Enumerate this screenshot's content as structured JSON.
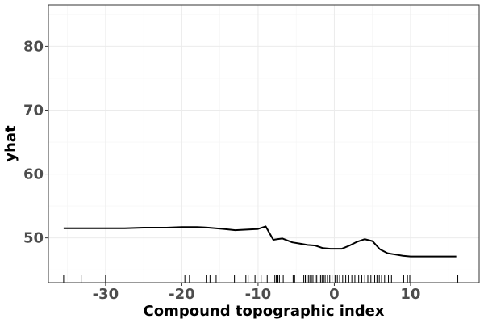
{
  "chart_data": {
    "type": "line",
    "title": "",
    "xlabel": "Compound topographic index",
    "ylabel": "yhat",
    "xlim": [
      -37.5,
      19
    ],
    "ylim": [
      43,
      86.5
    ],
    "x_ticks": [
      -30,
      -20,
      -10,
      0,
      10
    ],
    "y_ticks": [
      50,
      60,
      70,
      80
    ],
    "grid": true,
    "legend": "none",
    "series": [
      {
        "x": [
          -35.5,
          -33,
          -30,
          -27.5,
          -25,
          -22,
          -20,
          -18,
          -16.5,
          -14.5,
          -13,
          -11.5,
          -10,
          -9,
          -8,
          -7.5,
          -6.8,
          -5.5,
          -4.5,
          -3.5,
          -2.5,
          -1.5,
          -0.5,
          1,
          2,
          3,
          4,
          5,
          6,
          7,
          8,
          9,
          10,
          12,
          14,
          16
        ],
        "values": [
          51.5,
          51.5,
          51.5,
          51.5,
          51.6,
          51.6,
          51.7,
          51.7,
          51.6,
          51.4,
          51.2,
          51.3,
          51.4,
          51.8,
          49.7,
          49.8,
          49.9,
          49.3,
          49.1,
          48.9,
          48.8,
          48.4,
          48.3,
          48.3,
          48.8,
          49.4,
          49.8,
          49.5,
          48.2,
          47.6,
          47.4,
          47.2,
          47.1,
          47.1,
          47.1,
          47.1
        ]
      }
    ],
    "rug": [
      -35.5,
      -33.2,
      -30,
      -19.6,
      -19,
      -16.8,
      -16.3,
      -15.5,
      -13.1,
      -11.6,
      -11.3,
      -10.4,
      -9.6,
      -8.8,
      -7.8,
      -7.6,
      -7.4,
      -7.2,
      -6.7,
      -5.4,
      -5.2,
      -4.0,
      -3.8,
      -3.6,
      -3.4,
      -3.2,
      -3.0,
      -2.8,
      -2.5,
      -2.3,
      -2.0,
      -1.8,
      -1.6,
      -1.4,
      -1.2,
      -0.9,
      -0.6,
      -0.3,
      0.1,
      0.4,
      0.7,
      1.1,
      1.5,
      1.9,
      2.3,
      2.7,
      3.2,
      3.6,
      4.0,
      4.4,
      4.8,
      5.3,
      5.6,
      5.9,
      6.2,
      6.6,
      7.1,
      7.5,
      9.1,
      9.6,
      9.9,
      16.2
    ]
  }
}
